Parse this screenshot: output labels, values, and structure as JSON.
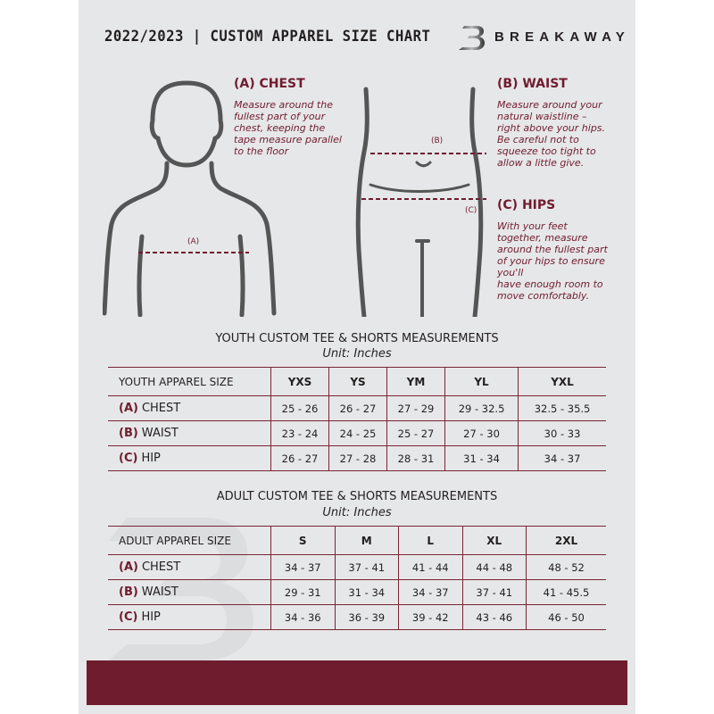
{
  "header": {
    "title": "2022/2023 | CUSTOM APPAREL SIZE CHART",
    "brand": "BREAKAWAY"
  },
  "colors": {
    "accent": "#701c30",
    "background": "#e6e7e8",
    "text": "#231f20"
  },
  "guide": {
    "chest": {
      "heading": "(A) CHEST",
      "text": "Measure around the\nfullest part of your\nchest, keeping the\ntape measure parallel\nto the floor",
      "marker": "(A)"
    },
    "waist": {
      "heading": "(B) WAIST",
      "text": "Measure around your\nnatural waistline –\nright above your hips.\nBe careful not to\nsqueeze too tight to\nallow a little give.",
      "marker": "(B)"
    },
    "hips": {
      "heading": "(C) HIPS",
      "text": "With your feet\ntogether, measure\naround the fullest part\nof your hips to ensure\nyou'll\nhave enough room to\nmove comfortably.",
      "marker": "(C)"
    }
  },
  "youth": {
    "title": "YOUTH CUSTOM TEE & SHORTS MEASUREMENTS",
    "unit": "Unit: Inches",
    "header": [
      "YOUTH APPAREL SIZE",
      "YXS",
      "YS",
      "YM",
      "YL",
      "YXL"
    ],
    "rows": [
      {
        "label": "(A)",
        "name": "CHEST",
        "values": [
          "25 - 26",
          "26 - 27",
          "27 - 29",
          "29 - 32.5",
          "32.5 - 35.5"
        ]
      },
      {
        "label": "(B)",
        "name": "WAIST",
        "values": [
          "23 - 24",
          "24 - 25",
          "25 - 27",
          "27 - 30",
          "30 - 33"
        ]
      },
      {
        "label": "(C)",
        "name": "HIP",
        "values": [
          "26 - 27",
          "27 - 28",
          "28 - 31",
          "31 - 34",
          "34 - 37"
        ]
      }
    ]
  },
  "adult": {
    "title": "ADULT CUSTOM TEE & SHORTS MEASUREMENTS",
    "unit": "Unit: Inches",
    "header": [
      "ADULT APPAREL SIZE",
      "S",
      "M",
      "L",
      "XL",
      "2XL"
    ],
    "rows": [
      {
        "label": "(A)",
        "name": "CHEST",
        "values": [
          "34 - 37",
          "37 - 41",
          "41 - 44",
          "44 - 48",
          "48 - 52"
        ]
      },
      {
        "label": "(B)",
        "name": "WAIST",
        "values": [
          "29 - 31",
          "31 - 34",
          "34 - 37",
          "37 - 41",
          "41 - 45.5"
        ]
      },
      {
        "label": "(C)",
        "name": "HIP",
        "values": [
          "34 - 36",
          "36 - 39",
          "39 - 42",
          "43 - 46",
          "46 - 50"
        ]
      }
    ]
  }
}
